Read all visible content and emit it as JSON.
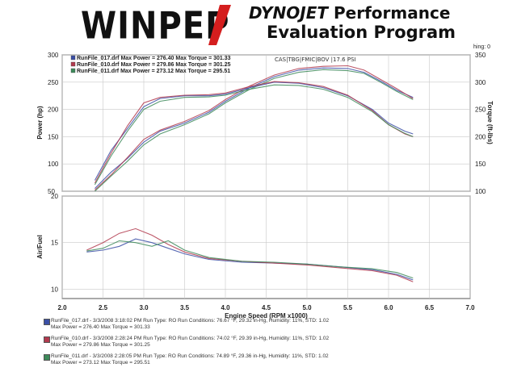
{
  "header": {
    "logo": "WINPEP",
    "brand": "DYNOJET",
    "brand_suffix": "Performance",
    "subtitle": "Evaluation Program",
    "corner_label": "hing: 0"
  },
  "colors": {
    "run17": "#3b4fa6",
    "run10": "#b23a4e",
    "run11": "#3d8a5a"
  },
  "chart_data": [
    {
      "type": "line",
      "x_axis_label": "Engine Speed (RPM x1000)",
      "x_ticks": [
        "2.0",
        "2.5",
        "3.0",
        "3.5",
        "4.0",
        "4.5",
        "5.0",
        "5.5",
        "6.0",
        "6.5",
        "7.0"
      ],
      "xlim": [
        2.0,
        7.0
      ],
      "y_left_label": "Power (hp)",
      "y_left_ticks": [
        "50",
        "100",
        "150",
        "200",
        "250",
        "300"
      ],
      "ylim_left": [
        50,
        300
      ],
      "y_right_label": "Torque (ft-lbs)",
      "y_right_ticks": [
        "100",
        "150",
        "200",
        "250",
        "300",
        "350"
      ],
      "ylim_right": [
        100,
        350
      ],
      "legend": [
        "RunFile_017.drf Max Power = 276.40   Max Torque = 301.33",
        "RunFile_010.drf Max Power = 279.86   Max Torque = 301.25",
        "RunFile_011.drf Max Power = 273.12   Max Torque = 295.51"
      ],
      "annotation": "CAS|TBG|FMIC|BOV |17.6 PSI",
      "grid": true,
      "series": [
        {
          "name": "RunFile_017.drf Power",
          "color": "#3b4fa6",
          "axis": "left",
          "x": [
            2.4,
            2.6,
            2.8,
            3.0,
            3.2,
            3.5,
            3.8,
            4.0,
            4.3,
            4.6,
            4.9,
            5.2,
            5.5,
            5.7,
            5.9,
            6.1,
            6.3
          ],
          "y": [
            55,
            85,
            110,
            140,
            160,
            175,
            195,
            215,
            240,
            260,
            272,
            276,
            275,
            268,
            252,
            235,
            222
          ]
        },
        {
          "name": "RunFile_010.drf Power",
          "color": "#b23a4e",
          "axis": "left",
          "x": [
            2.4,
            2.6,
            2.8,
            3.0,
            3.2,
            3.5,
            3.8,
            4.0,
            4.3,
            4.6,
            4.9,
            5.2,
            5.5,
            5.7,
            5.9,
            6.1,
            6.3
          ],
          "y": [
            52,
            80,
            112,
            145,
            162,
            178,
            198,
            218,
            243,
            263,
            275,
            279,
            280,
            272,
            255,
            238,
            220
          ]
        },
        {
          "name": "RunFile_011.drf Power",
          "color": "#3d8a5a",
          "axis": "left",
          "x": [
            2.4,
            2.6,
            2.8,
            3.0,
            3.2,
            3.5,
            3.8,
            4.0,
            4.3,
            4.6,
            4.9,
            5.2,
            5.5,
            5.7,
            5.9,
            6.1,
            6.3
          ],
          "y": [
            50,
            78,
            105,
            135,
            155,
            172,
            192,
            212,
            237,
            257,
            268,
            273,
            271,
            266,
            250,
            233,
            218
          ]
        },
        {
          "name": "RunFile_017.drf Torque",
          "color": "#3b4fa6",
          "axis": "right",
          "x": [
            2.4,
            2.6,
            2.8,
            3.0,
            3.2,
            3.5,
            3.8,
            4.0,
            4.3,
            4.6,
            4.9,
            5.2,
            5.5,
            5.8,
            6.0,
            6.2,
            6.3
          ],
          "y": [
            120,
            175,
            215,
            255,
            270,
            275,
            275,
            278,
            290,
            300,
            298,
            290,
            275,
            250,
            225,
            210,
            205
          ]
        },
        {
          "name": "RunFile_010.drf Torque",
          "color": "#b23a4e",
          "axis": "right",
          "x": [
            2.4,
            2.6,
            2.8,
            3.0,
            3.2,
            3.5,
            3.8,
            4.0,
            4.3,
            4.6,
            4.9,
            5.2,
            5.5,
            5.8,
            6.0,
            6.2,
            6.3
          ],
          "y": [
            115,
            170,
            220,
            262,
            272,
            276,
            277,
            280,
            292,
            301,
            299,
            292,
            276,
            248,
            222,
            205,
            200
          ]
        },
        {
          "name": "RunFile_011.drf Torque",
          "color": "#3d8a5a",
          "axis": "right",
          "x": [
            2.4,
            2.6,
            2.8,
            3.0,
            3.2,
            3.5,
            3.8,
            4.0,
            4.3,
            4.6,
            4.9,
            5.2,
            5.5,
            5.8,
            6.0,
            6.2,
            6.3
          ],
          "y": [
            112,
            165,
            210,
            250,
            265,
            272,
            273,
            276,
            287,
            295,
            294,
            287,
            272,
            246,
            222,
            206,
            200
          ]
        }
      ]
    },
    {
      "type": "line",
      "x_axis_label": "Engine Speed (RPM x1000)",
      "xlim": [
        2.0,
        7.0
      ],
      "y_label": "Air/Fuel",
      "y_ticks": [
        "10",
        "15",
        "20"
      ],
      "ylim": [
        9,
        20
      ],
      "grid": true,
      "series": [
        {
          "name": "RunFile_017.drf AFR",
          "color": "#3b4fa6",
          "x": [
            2.3,
            2.5,
            2.7,
            2.9,
            3.1,
            3.3,
            3.5,
            3.8,
            4.2,
            4.6,
            5.0,
            5.4,
            5.8,
            6.1,
            6.3
          ],
          "y": [
            14.0,
            14.2,
            14.6,
            15.4,
            15.0,
            14.4,
            13.8,
            13.2,
            12.9,
            12.8,
            12.7,
            12.4,
            12.1,
            11.6,
            11.0
          ]
        },
        {
          "name": "RunFile_010.drf AFR",
          "color": "#b23a4e",
          "x": [
            2.3,
            2.5,
            2.7,
            2.9,
            3.1,
            3.3,
            3.5,
            3.8,
            4.2,
            4.6,
            5.0,
            5.4,
            5.8,
            6.1,
            6.3
          ],
          "y": [
            14.2,
            15.0,
            16.0,
            16.5,
            15.8,
            14.8,
            14.0,
            13.3,
            13.0,
            12.8,
            12.6,
            12.3,
            12.0,
            11.5,
            10.8
          ]
        },
        {
          "name": "RunFile_011.drf AFR",
          "color": "#3d8a5a",
          "x": [
            2.3,
            2.5,
            2.7,
            2.9,
            3.1,
            3.3,
            3.5,
            3.8,
            4.2,
            4.6,
            5.0,
            5.4,
            5.8,
            6.1,
            6.3
          ],
          "y": [
            14.1,
            14.4,
            15.2,
            15.0,
            14.6,
            15.2,
            14.2,
            13.4,
            13.0,
            12.9,
            12.7,
            12.4,
            12.2,
            11.8,
            11.2
          ]
        }
      ]
    }
  ],
  "footer": {
    "runs": [
      {
        "line1": "RunFile_017.drf - 3/3/2008 3:18:02 PM  Run Type: RO  Run Conditions: 76.67 °F, 29.32 in-Hg,  Humidity:  11%, STD: 1.02",
        "line2": "Max Power = 276.40   Max Torque = 301.33",
        "color": "#3b4fa6"
      },
      {
        "line1": "RunFile_010.drf - 3/3/2008 2:28:24 PM  Run Type: RO  Run Conditions: 74.02 °F, 29.39 in-Hg,  Humidity:  11%, STD: 1.02",
        "line2": "Max Power = 279.86   Max Torque = 301.25",
        "color": "#b23a4e"
      },
      {
        "line1": "RunFile_011.drf - 3/3/2008 2:28:05 PM  Run Type: RO  Run Conditions: 74.89 °F, 29.36 in-Hg,  Humidity:  11%, STD: 1.02",
        "line2": "Max Power = 273.12   Max Torque = 295.51",
        "color": "#3d8a5a"
      }
    ]
  }
}
